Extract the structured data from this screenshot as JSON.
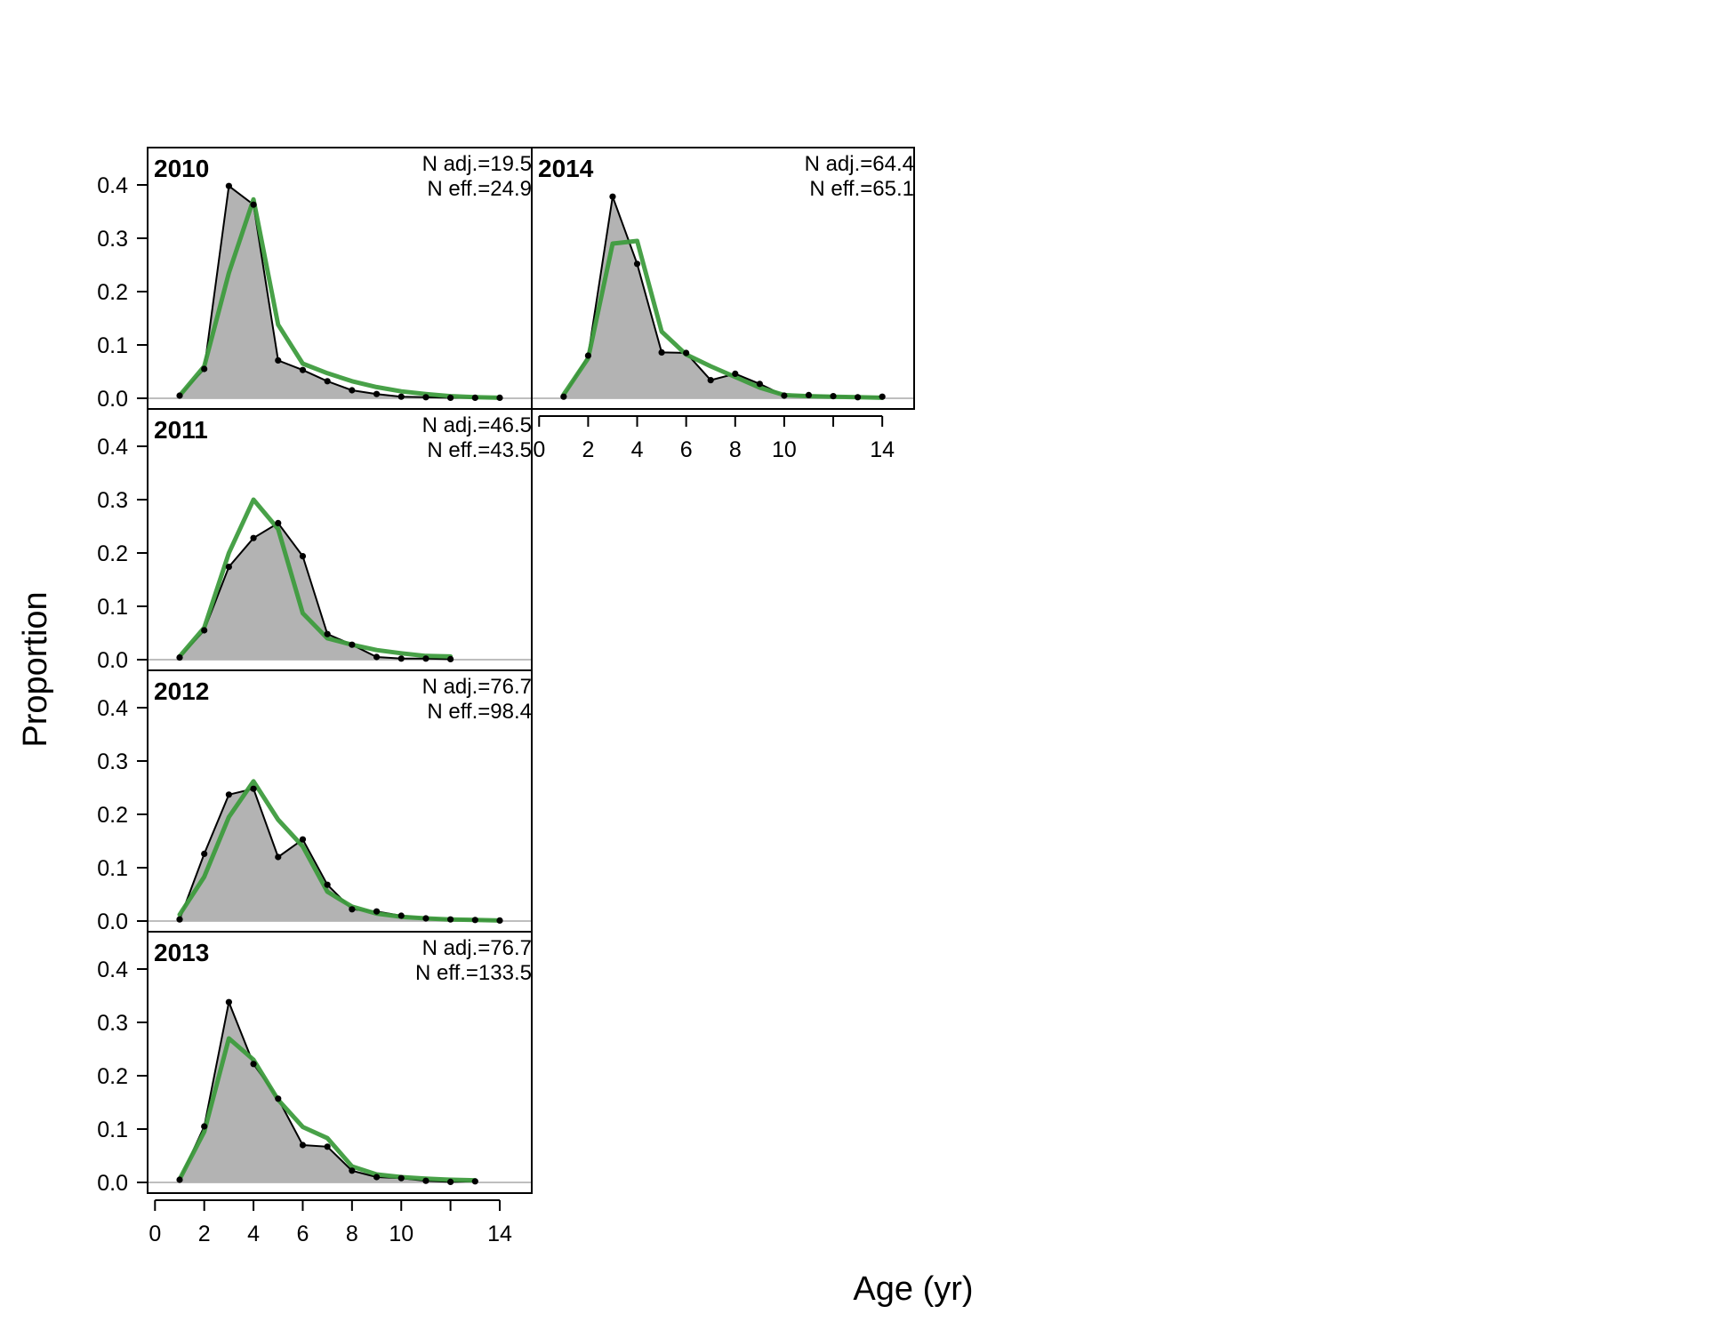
{
  "chart_data": {
    "type": "area",
    "xlabel": "Age (yr)",
    "ylabel": "Proportion",
    "xlim": [
      0,
      15
    ],
    "ylim": [
      0,
      0.47
    ],
    "x_ticks": [
      0,
      2,
      4,
      6,
      8,
      10,
      12,
      14
    ],
    "x_tick_labels": [
      "0",
      "2",
      "4",
      "6",
      "8",
      "10",
      "",
      "14"
    ],
    "y_ticks": [
      0.0,
      0.1,
      0.2,
      0.3,
      0.4
    ],
    "y_tick_labels": [
      "0.0",
      "0.1",
      "0.2",
      "0.3",
      "0.4"
    ],
    "colors": {
      "observed_fill": "#b3b3b3",
      "observed_line": "#000000",
      "expected_line": "#3e9c3e",
      "zero_line": "#bebebe"
    },
    "panels": [
      {
        "year": "2010",
        "n_adj": "N adj.=19.5",
        "n_eff": "N eff.=24.9",
        "ages": [
          1,
          2,
          3,
          4,
          5,
          6,
          7,
          8,
          9,
          10,
          11,
          12,
          13,
          14
        ],
        "observed": [
          0.005,
          0.055,
          0.398,
          0.363,
          0.071,
          0.053,
          0.032,
          0.015,
          0.008,
          0.003,
          0.002,
          0.001,
          0.001,
          0.001
        ],
        "expected": [
          0.005,
          0.06,
          0.235,
          0.373,
          0.138,
          0.065,
          0.047,
          0.032,
          0.021,
          0.013,
          0.008,
          0.004,
          0.002,
          0.001
        ]
      },
      {
        "year": "2011",
        "n_adj": "N adj.=46.5",
        "n_eff": "N eff.=43.5",
        "ages": [
          1,
          2,
          3,
          4,
          5,
          6,
          7,
          8,
          9,
          10,
          11,
          12
        ],
        "observed": [
          0.004,
          0.055,
          0.174,
          0.228,
          0.256,
          0.194,
          0.048,
          0.028,
          0.005,
          0.002,
          0.002,
          0.001
        ],
        "expected": [
          0.006,
          0.06,
          0.2,
          0.3,
          0.245,
          0.087,
          0.04,
          0.028,
          0.018,
          0.012,
          0.007,
          0.006
        ]
      },
      {
        "year": "2012",
        "n_adj": "N adj.=76.7",
        "n_eff": "N eff.=98.4",
        "ages": [
          1,
          2,
          3,
          4,
          5,
          6,
          7,
          8,
          9,
          10,
          11,
          12,
          13,
          14
        ],
        "observed": [
          0.003,
          0.126,
          0.237,
          0.248,
          0.12,
          0.153,
          0.068,
          0.022,
          0.018,
          0.01,
          0.005,
          0.003,
          0.002,
          0.001
        ],
        "expected": [
          0.012,
          0.083,
          0.195,
          0.262,
          0.19,
          0.14,
          0.055,
          0.027,
          0.014,
          0.008,
          0.005,
          0.003,
          0.002,
          0.001
        ]
      },
      {
        "year": "2013",
        "n_adj": "N adj.=76.7",
        "n_eff": "N eff.=133.5",
        "ages": [
          1,
          2,
          3,
          4,
          5,
          6,
          7,
          8,
          9,
          10,
          11,
          12,
          13
        ],
        "observed": [
          0.005,
          0.105,
          0.338,
          0.222,
          0.157,
          0.07,
          0.067,
          0.022,
          0.01,
          0.008,
          0.003,
          0.001,
          0.002
        ],
        "expected": [
          0.006,
          0.095,
          0.27,
          0.23,
          0.155,
          0.104,
          0.083,
          0.03,
          0.015,
          0.01,
          0.007,
          0.005,
          0.004
        ]
      },
      {
        "year": "2014",
        "n_adj": "N adj.=64.4",
        "n_eff": "N eff.=65.1",
        "ages": [
          1,
          2,
          3,
          4,
          5,
          6,
          7,
          8,
          9,
          10,
          11,
          12,
          13,
          14
        ],
        "observed": [
          0.003,
          0.08,
          0.378,
          0.252,
          0.086,
          0.085,
          0.034,
          0.046,
          0.027,
          0.005,
          0.006,
          0.004,
          0.002,
          0.003
        ],
        "expected": [
          0.007,
          0.075,
          0.29,
          0.295,
          0.125,
          0.082,
          0.06,
          0.04,
          0.02,
          0.006,
          0.004,
          0.003,
          0.002,
          0.001
        ]
      }
    ]
  }
}
